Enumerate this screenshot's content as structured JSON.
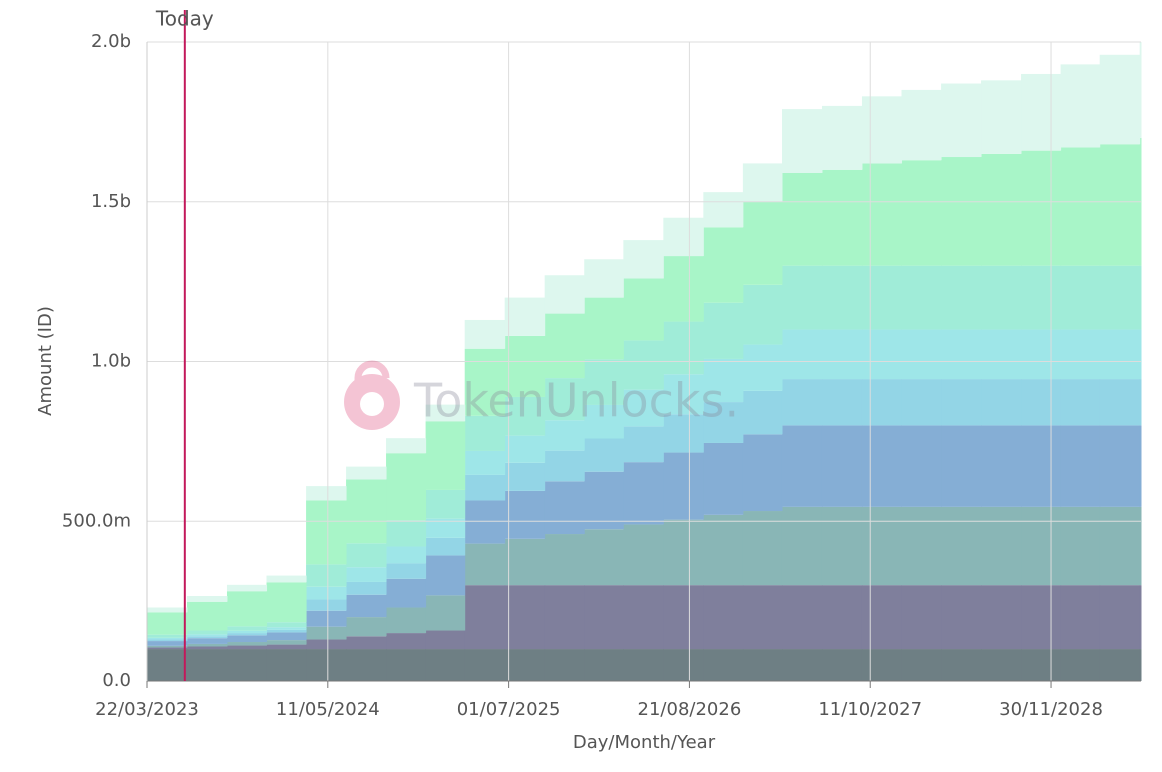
{
  "chart_data": {
    "type": "stacked-step-area",
    "x_label": "Day/Month/Year",
    "y_label": "Amount (ID)",
    "watermark": "TokenUnlocks.",
    "today": {
      "label": "Today",
      "x": "17/06/2023",
      "color": "#c2185b"
    },
    "x": [
      "22/03/2023",
      "22/06/2023",
      "22/09/2023",
      "22/12/2023",
      "22/03/2024",
      "22/06/2024",
      "22/09/2024",
      "22/12/2024",
      "22/03/2025",
      "22/06/2025",
      "22/09/2025",
      "22/12/2025",
      "22/03/2026",
      "22/06/2026",
      "22/09/2026",
      "22/12/2026",
      "22/03/2027",
      "22/06/2027",
      "22/09/2027",
      "22/12/2027",
      "22/03/2028",
      "22/06/2028",
      "22/09/2028",
      "22/12/2028",
      "22/03/2029",
      "22/06/2029"
    ],
    "xlim": [
      "22/03/2023",
      "25/06/2029"
    ],
    "xticks": [
      "22/03/2023",
      "11/05/2024",
      "01/07/2025",
      "21/08/2026",
      "11/10/2027",
      "30/11/2028"
    ],
    "ylim": [
      0,
      2000000000.0
    ],
    "yticks": [
      {
        "value": 0,
        "label": "0.0"
      },
      {
        "value": 500000000.0,
        "label": "500.0m"
      },
      {
        "value": 1000000000.0,
        "label": "1.0b"
      },
      {
        "value": 1500000000.0,
        "label": "1.5b"
      },
      {
        "value": 2000000000.0,
        "label": "2.0b"
      }
    ],
    "grid": true,
    "series": [
      {
        "color": "#6e7f84",
        "values": [
          100000000.0,
          100000000.0,
          100000000.0,
          100000000.0,
          100000000.0,
          100000000.0,
          100000000.0,
          100000000.0,
          100000000.0,
          100000000.0,
          100000000.0,
          100000000.0,
          100000000.0,
          100000000.0,
          100000000.0,
          100000000.0,
          100000000.0,
          100000000.0,
          100000000.0,
          100000000.0,
          100000000.0,
          100000000.0,
          100000000.0,
          100000000.0,
          100000000.0,
          100000000.0
        ]
      },
      {
        "color": "#7f7f9c",
        "values": [
          5000000.0,
          8000000.0,
          11000000.0,
          14000000.0,
          30000000.0,
          40000000.0,
          50000000.0,
          58000000.0,
          200000000.0,
          200000000.0,
          200000000.0,
          200000000.0,
          200000000.0,
          200000000.0,
          200000000.0,
          200000000.0,
          200000000.0,
          200000000.0,
          200000000.0,
          200000000.0,
          200000000.0,
          200000000.0,
          200000000.0,
          200000000.0,
          200000000.0,
          200000000.0
        ]
      },
      {
        "color": "#89b6b6",
        "values": [
          5000000.0,
          8000000.0,
          11000000.0,
          14000000.0,
          40000000.0,
          60000000.0,
          80000000.0,
          110000000.0,
          130000000.0,
          145000000.0,
          160000000.0,
          175000000.0,
          190000000.0,
          205000000.0,
          220000000.0,
          232000000.0,
          245000000.0,
          245000000.0,
          245000000.0,
          245000000.0,
          245000000.0,
          245000000.0,
          245000000.0,
          245000000.0,
          245000000.0,
          245000000.0
        ]
      },
      {
        "color": "#85aed5",
        "values": [
          15000000.0,
          18000000.0,
          21000000.0,
          24000000.0,
          50000000.0,
          70000000.0,
          90000000.0,
          125000000.0,
          135000000.0,
          150000000.0,
          165000000.0,
          180000000.0,
          195000000.0,
          210000000.0,
          225000000.0,
          240000000.0,
          255000000.0,
          255000000.0,
          255000000.0,
          255000000.0,
          255000000.0,
          255000000.0,
          255000000.0,
          255000000.0,
          255000000.0,
          255000000.0
        ]
      },
      {
        "color": "#93d5e6",
        "values": [
          5000000.0,
          6000000.0,
          7000000.0,
          8000000.0,
          35000000.0,
          40000000.0,
          48000000.0,
          55000000.0,
          80000000.0,
          88000000.0,
          96000000.0,
          104000000.0,
          112000000.0,
          120000000.0,
          128000000.0,
          136000000.0,
          145000000.0,
          145000000.0,
          145000000.0,
          145000000.0,
          145000000.0,
          145000000.0,
          145000000.0,
          145000000.0,
          145000000.0,
          145000000.0
        ]
      },
      {
        "color": "#9ee6e8",
        "values": [
          5000000.0,
          6000000.0,
          7000000.0,
          8000000.0,
          40000000.0,
          46000000.0,
          53000000.0,
          60000000.0,
          75000000.0,
          85000000.0,
          95000000.0,
          105000000.0,
          115000000.0,
          125000000.0,
          135000000.0,
          145000000.0,
          155000000.0,
          155000000.0,
          155000000.0,
          155000000.0,
          155000000.0,
          155000000.0,
          155000000.0,
          155000000.0,
          155000000.0,
          155000000.0
        ]
      },
      {
        "color": "#a0ecd8",
        "values": [
          10000000.0,
          12000000.0,
          14000000.0,
          16000000.0,
          70000000.0,
          75000000.0,
          82000000.0,
          90000000.0,
          110000000.0,
          121000000.0,
          132000000.0,
          143000000.0,
          154000000.0,
          165000000.0,
          176000000.0,
          187000000.0,
          200000000.0,
          200000000.0,
          200000000.0,
          200000000.0,
          200000000.0,
          200000000.0,
          200000000.0,
          200000000.0,
          200000000.0,
          200000000.0
        ]
      },
      {
        "color": "#a8f5c8",
        "values": [
          70000000.0,
          90000000.0,
          110000000.0,
          125000000.0,
          200000000.0,
          200000000.0,
          210000000.0,
          215000000.0,
          210000000.0,
          191000000.0,
          202000000.0,
          193000000.0,
          194000000.0,
          205000000.0,
          236000000.0,
          260000000.0,
          290000000.0,
          300000000.0,
          320000000.0,
          330000000.0,
          340000000.0,
          350000000.0,
          360000000.0,
          370000000.0,
          380000000.0,
          400000000.0
        ]
      },
      {
        "color": "#ddf7ee",
        "values": [
          15000000.0,
          18000000.0,
          20000000.0,
          21000000.0,
          45000000.0,
          40000000.0,
          47000000.0,
          52000000.0,
          90000000.0,
          120000000.0,
          120000000.0,
          120000000.0,
          120000000.0,
          120000000.0,
          110000000.0,
          120000000.0,
          200000000.0,
          200000000.0,
          210000000.0,
          220000000.0,
          230000000.0,
          230000000.0,
          240000000.0,
          260000000.0,
          280000000.0,
          300000000.0
        ]
      }
    ]
  }
}
